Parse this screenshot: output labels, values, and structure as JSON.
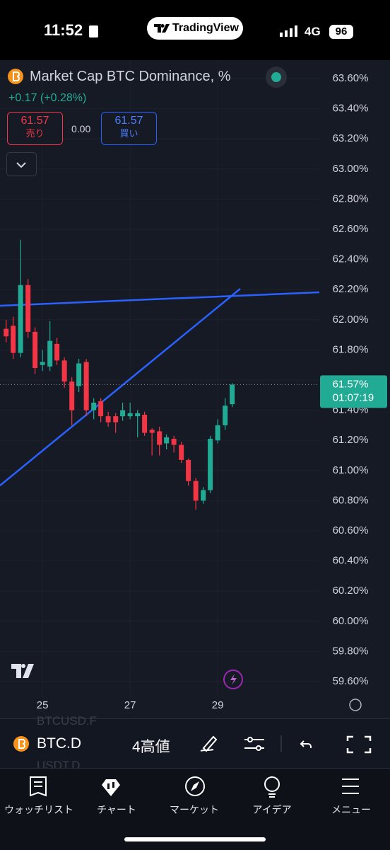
{
  "status_bar": {
    "time": "11:52",
    "app": "TradingView",
    "network": "4G",
    "battery": "96"
  },
  "header": {
    "title": "Market Cap BTC Dominance, %",
    "change": "+0.17 (+0.28%)",
    "sell_price": "61.57",
    "sell_label": "売り",
    "spread": "0.00",
    "buy_price": "61.57",
    "buy_label": "買い"
  },
  "chart_data": {
    "type": "candlestick",
    "x": [
      24.17,
      24.33,
      24.5,
      24.67,
      24.83,
      25,
      25.17,
      25.33,
      25.5,
      25.67,
      25.83,
      26,
      26.17,
      26.33,
      26.5,
      26.67,
      26.83,
      27,
      27.17,
      27.33,
      27.5,
      27.67,
      27.83,
      28,
      28.17,
      28.33,
      28.5,
      28.67,
      28.83,
      29,
      29.17,
      29.33
    ],
    "open": [
      61.94,
      61.96,
      61.78,
      62.23,
      61.92,
      61.7,
      61.69,
      61.84,
      61.73,
      61.59,
      61.56,
      61.72,
      61.4,
      61.46,
      61.36,
      61.36,
      61.36,
      61.36,
      61.36,
      61.37,
      61.27,
      61.26,
      61.18,
      61.21,
      61.17,
      61.07,
      60.93,
      60.8,
      60.87,
      61.2,
      61.3,
      61.44
    ],
    "high": [
      62.0,
      62.02,
      62.53,
      62.27,
      61.95,
      61.8,
      61.99,
      61.88,
      61.75,
      61.62,
      61.74,
      61.74,
      61.48,
      61.48,
      61.39,
      61.38,
      61.45,
      61.45,
      61.4,
      61.39,
      61.28,
      61.29,
      61.24,
      61.23,
      61.19,
      61.08,
      60.95,
      60.89,
      61.23,
      61.34,
      61.48,
      61.58
    ],
    "low": [
      61.85,
      61.74,
      61.75,
      61.88,
      61.64,
      61.66,
      61.66,
      61.7,
      61.55,
      61.3,
      61.52,
      61.36,
      61.34,
      61.32,
      61.29,
      61.25,
      61.33,
      61.34,
      61.22,
      61.23,
      61.1,
      61.1,
      61.14,
      61.12,
      61.05,
      60.9,
      60.74,
      60.78,
      60.85,
      61.18,
      61.27,
      61.42
    ],
    "close": [
      61.89,
      61.78,
      62.23,
      61.92,
      61.68,
      61.72,
      61.86,
      61.73,
      61.59,
      61.4,
      61.71,
      61.4,
      61.45,
      61.36,
      61.32,
      61.32,
      61.4,
      61.38,
      61.38,
      61.25,
      61.25,
      61.17,
      61.22,
      61.17,
      61.07,
      60.93,
      60.8,
      60.87,
      61.21,
      61.3,
      61.43,
      61.57
    ],
    "up_color": "#22ab94",
    "down_color": "#f23645",
    "xlim": [
      24.03,
      31.32
    ],
    "xticks": [
      25,
      27,
      29
    ],
    "ylim": [
      59.6,
      63.6
    ],
    "yticks": [
      {
        "value": 63.6,
        "label": "63.60%"
      },
      {
        "value": 63.4,
        "label": "63.40%"
      },
      {
        "value": 63.2,
        "label": "63.20%"
      },
      {
        "value": 63.0,
        "label": "63.00%"
      },
      {
        "value": 62.8,
        "label": "62.80%"
      },
      {
        "value": 62.6,
        "label": "62.60%"
      },
      {
        "value": 62.4,
        "label": "62.40%"
      },
      {
        "value": 62.2,
        "label": "62.20%"
      },
      {
        "value": 62.0,
        "label": "62.00%"
      },
      {
        "value": 61.8,
        "label": "61.80%"
      },
      {
        "value": 61.6,
        "label": "61.60%"
      },
      {
        "value": 61.4,
        "label": "61.40%"
      },
      {
        "value": 61.2,
        "label": "61.20%"
      },
      {
        "value": 61.0,
        "label": "61.00%"
      },
      {
        "value": 60.8,
        "label": "60.80%"
      },
      {
        "value": 60.6,
        "label": "60.60%"
      },
      {
        "value": 60.4,
        "label": "60.40%"
      },
      {
        "value": 60.2,
        "label": "60.20%"
      },
      {
        "value": 60.0,
        "label": "60.00%"
      },
      {
        "value": 59.8,
        "label": "59.80%"
      },
      {
        "value": 59.6,
        "label": "59.60%"
      }
    ],
    "last_price": {
      "value": 61.57,
      "label": "61.57%"
    },
    "countdown": "01:07:19"
  },
  "toolbar": {
    "symbol": "BTC.D",
    "interval": "4高値",
    "ghost_symbols": [
      "BTCUSD.F",
      "USDT.D"
    ]
  },
  "nav": [
    "ウォッチリスト",
    "チャート",
    "マーケット",
    "アイデア",
    "メニュー"
  ]
}
